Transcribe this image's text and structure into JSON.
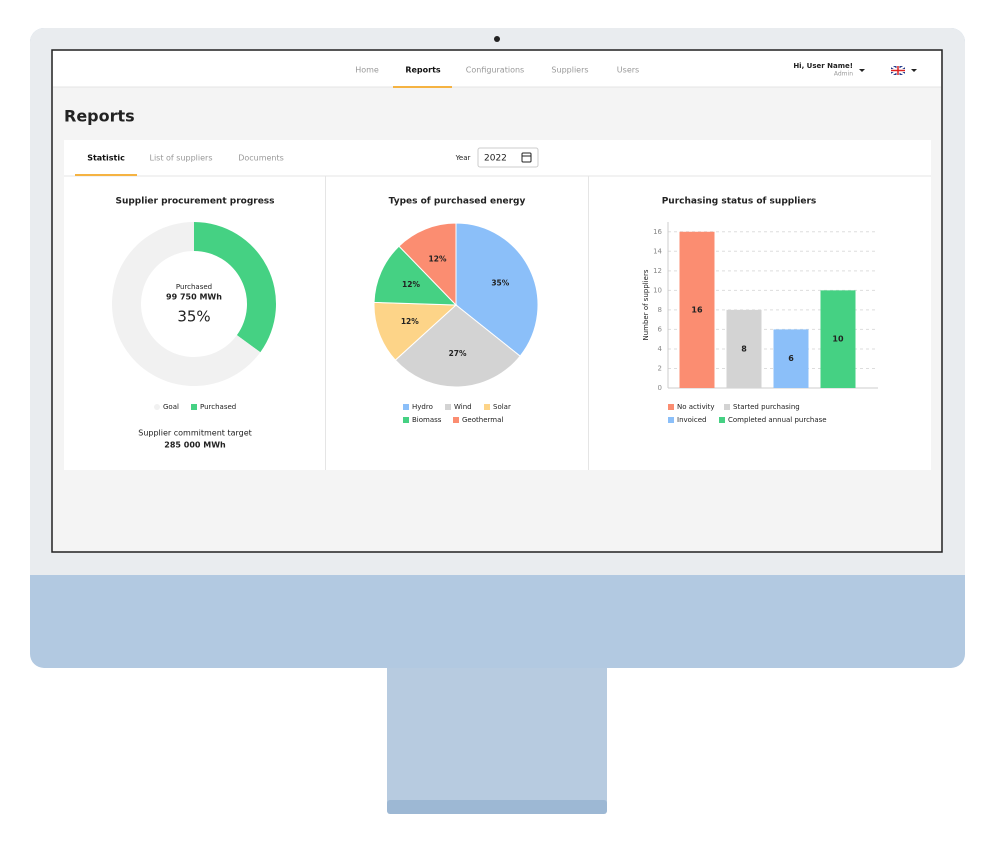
{
  "nav": {
    "items": [
      "Home",
      "Reports",
      "Configurations",
      "Suppliers",
      "Users"
    ],
    "active": 1
  },
  "user": {
    "greeting": "Hi, User Name!",
    "role": "Admin"
  },
  "page_title": "Reports",
  "tabs": {
    "items": [
      "Statistic",
      "List of suppliers",
      "Documents"
    ],
    "active": 0
  },
  "year": {
    "label": "Year",
    "value": "2022"
  },
  "chart_data": [
    {
      "type": "donut",
      "title": "Supplier procurement progress",
      "categories": [
        "Goal",
        "Purchased"
      ],
      "values": [
        65,
        35
      ],
      "value_labels": [
        null,
        "35%"
      ],
      "colors": [
        "#f1f1f1",
        "#45d183"
      ],
      "center_label": "Purchased",
      "center_amount": "99 750 MWh",
      "footer_label": "Supplier commitment target",
      "footer_amount": "285 000 MWh"
    },
    {
      "type": "pie",
      "title": "Types of purchased energy",
      "categories": [
        "Hydro",
        "Wind",
        "Solar",
        "Biomass",
        "Geothermal"
      ],
      "values": [
        35,
        27,
        12,
        12,
        12
      ],
      "value_labels": [
        "35%",
        "27%",
        "12%",
        "12%",
        "12%"
      ],
      "colors": [
        "#8bbff9",
        "#d3d3d3",
        "#fdd488",
        "#45d183",
        "#fb8d71"
      ]
    },
    {
      "type": "bar",
      "title": "Purchasing status of suppliers",
      "y_label": "Number of suppliers",
      "categories": [
        "No activity",
        "Started purchasing",
        "Invoiced",
        "Completed annual purchase"
      ],
      "values": [
        16,
        8,
        6,
        10
      ],
      "colors": [
        "#fb8d71",
        "#d3d3d3",
        "#8bbff9",
        "#45d183"
      ],
      "ylim": [
        0,
        17
      ],
      "yticks": [
        0,
        2,
        4,
        6,
        8,
        10,
        12,
        14,
        16
      ],
      "grid": true
    }
  ]
}
